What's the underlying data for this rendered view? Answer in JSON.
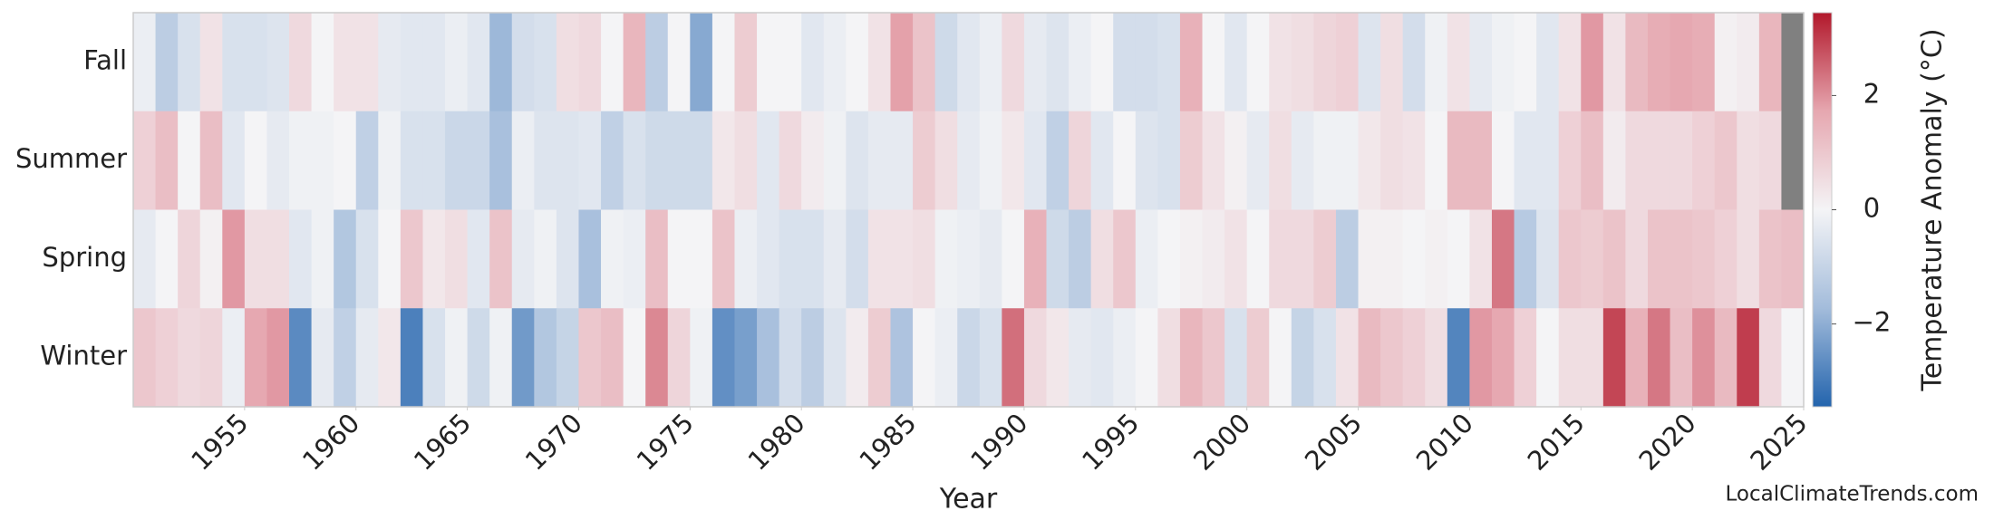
{
  "chart_data": {
    "type": "heatmap",
    "x_label": "Year",
    "colorbar_label": "Temperature Anomaly (°C)",
    "watermark": "LocalClimateTrends.com",
    "x": [
      1951,
      1952,
      1953,
      1954,
      1955,
      1956,
      1957,
      1958,
      1959,
      1960,
      1961,
      1962,
      1963,
      1964,
      1965,
      1966,
      1967,
      1968,
      1969,
      1970,
      1971,
      1972,
      1973,
      1974,
      1975,
      1976,
      1977,
      1978,
      1979,
      1980,
      1981,
      1982,
      1983,
      1984,
      1985,
      1986,
      1987,
      1988,
      1989,
      1990,
      1991,
      1992,
      1993,
      1994,
      1995,
      1996,
      1997,
      1998,
      1999,
      2000,
      2001,
      2002,
      2003,
      2004,
      2005,
      2006,
      2007,
      2008,
      2009,
      2010,
      2011,
      2012,
      2013,
      2014,
      2015,
      2016,
      2017,
      2018,
      2019,
      2020,
      2021,
      2022,
      2023,
      2024,
      2025
    ],
    "xlim": [
      1950,
      2025
    ],
    "xticks": [
      1955,
      1960,
      1965,
      1970,
      1975,
      1980,
      1985,
      1990,
      1995,
      2000,
      2005,
      2010,
      2015,
      2020,
      2025
    ],
    "series": [
      {
        "name": "Fall",
        "values": [
          -0.2,
          -1.2,
          -0.6,
          0.4,
          -0.6,
          -0.6,
          -0.5,
          0.6,
          0,
          0.4,
          0.4,
          -0.3,
          -0.4,
          -0.4,
          -0.2,
          -0.4,
          -1.8,
          -0.7,
          -0.6,
          0.5,
          0.6,
          0,
          1.4,
          -1.2,
          0,
          -2.1,
          0,
          0.9,
          0,
          0,
          -0.4,
          -0.2,
          0,
          0.4,
          1.8,
          1.1,
          -0.8,
          -0.4,
          -0.2,
          0.6,
          -0.3,
          -0.5,
          -0.2,
          0,
          -0.7,
          -0.7,
          -0.6,
          1.5,
          0,
          -0.4,
          0,
          0.4,
          0.5,
          0.7,
          0.8,
          -0.5,
          0.5,
          -0.7,
          -0.1,
          0.4,
          -0.3,
          -0.1,
          0,
          -0.4,
          0.4,
          1.9,
          0.4,
          1.3,
          1.6,
          1.7,
          1.6,
          0.1,
          0.2,
          1.4,
          null
        ]
      },
      {
        "name": "Summer",
        "values": [
          0.8,
          1.2,
          0,
          1.2,
          -0.4,
          0,
          -0.3,
          -0.1,
          -0.1,
          0,
          -1.1,
          -0.1,
          -0.6,
          -0.6,
          -0.9,
          -0.9,
          -1.6,
          -0.2,
          -0.5,
          -0.5,
          -0.4,
          -1.1,
          -0.6,
          -0.8,
          -0.8,
          -0.8,
          0.3,
          0.5,
          -0.4,
          0.6,
          0.2,
          -0.1,
          -0.5,
          -0.3,
          -0.3,
          0.9,
          0.5,
          -0.3,
          -0.1,
          0.3,
          -0.4,
          -1.1,
          0.7,
          -0.4,
          0,
          -0.5,
          -0.6,
          0.9,
          0.4,
          0.1,
          -0.3,
          0.5,
          -0.3,
          -0.1,
          -0.1,
          0.3,
          0.5,
          0.4,
          0,
          1.3,
          1.3,
          0,
          -0.4,
          -0.4,
          0.8,
          1.2,
          0.2,
          0.6,
          0.6,
          0.6,
          0.8,
          1.0,
          0.5,
          0.6,
          null
        ]
      },
      {
        "name": "Spring",
        "values": [
          -0.3,
          0,
          0.7,
          0.1,
          1.9,
          0.5,
          0.5,
          -0.4,
          -0.1,
          -1.4,
          -0.6,
          0,
          1.0,
          0.3,
          0.5,
          -0.4,
          1.1,
          -0.3,
          -0.1,
          -0.5,
          -1.6,
          -0.1,
          -0.2,
          1.2,
          0,
          0,
          1.1,
          -0.2,
          -0.4,
          -0.6,
          -0.6,
          -0.3,
          -0.7,
          0.4,
          0.4,
          0.5,
          -0.1,
          -0.2,
          -0.3,
          0,
          1.5,
          -0.8,
          -1.2,
          0.5,
          1.0,
          -0.2,
          0,
          0.1,
          0.2,
          0.4,
          0,
          0.6,
          0.6,
          0.9,
          -1.2,
          0.1,
          0.1,
          0,
          0.1,
          0,
          0.4,
          2.3,
          -1.3,
          -0.5,
          1.0,
          0.9,
          1.1,
          0.6,
          1.1,
          1.1,
          1.0,
          0.8,
          0.5,
          1.1,
          1.2
        ]
      },
      {
        "name": "Winter",
        "values": [
          1.0,
          0.8,
          0.6,
          0.7,
          -0.2,
          1.7,
          1.9,
          -2.7,
          -0.3,
          -1.1,
          -0.3,
          0.3,
          -2.9,
          -0.6,
          -0.1,
          -0.8,
          -0.1,
          -2.4,
          -1.4,
          -1.0,
          1.0,
          1.2,
          0,
          2.1,
          0.7,
          -0.1,
          -2.6,
          -2.3,
          -1.6,
          -0.7,
          -1.2,
          -0.5,
          0.2,
          0.9,
          -1.5,
          0,
          -0.2,
          -0.9,
          -0.6,
          2.4,
          0.6,
          0.3,
          -0.3,
          -0.4,
          -0.2,
          0,
          0.5,
          1.4,
          1.0,
          -0.6,
          0.9,
          0,
          -1.0,
          -0.6,
          0.4,
          1.3,
          1.0,
          0.8,
          0.5,
          -2.8,
          1.9,
          1.7,
          0.8,
          0,
          0.5,
          0.5,
          2.9,
          1.5,
          2.3,
          1.2,
          2.0,
          1.3,
          3.0,
          0.6,
          0
        ]
      }
    ],
    "colorscale": [
      "#2364ad",
      "#a3bcdb",
      "#f4f4f6",
      "#e6a7b0",
      "#b2182b"
    ],
    "missing_color": "#808080",
    "clim": [
      -3.45,
      3.45
    ],
    "cticks": [
      {
        "value": -2,
        "label": "−2"
      },
      0,
      2
    ]
  }
}
